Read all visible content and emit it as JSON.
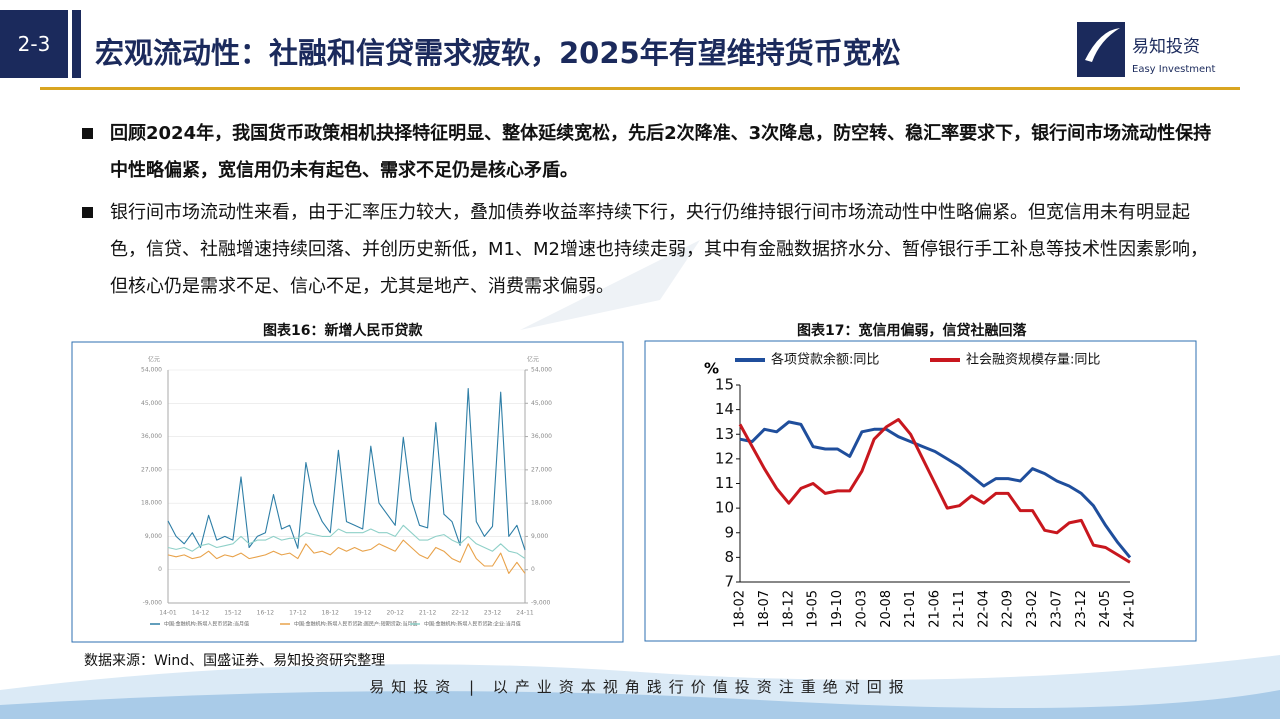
{
  "header": {
    "section": "2-3",
    "title": "宏观流动性：社融和信贷需求疲软，2025年有望维持货币宽松",
    "logo_cn": "易知投资",
    "logo_en": "Easy Investment"
  },
  "bullets": [
    "回顾2024年，我国货币政策相机抉择特征明显、整体延续宽松，先后2次降准、3次降息，防空转、稳汇率要求下，银行间市场流动性保持中性略偏紧，宽信用仍未有起色、需求不足仍是核心矛盾。",
    "银行间市场流动性来看，由于汇率压力较大，叠加债券收益率持续下行，央行仍维持银行间市场流动性中性略偏紧。但宽信用未有明显起色，信贷、社融增速持续回落、并创历史新低，M1、M2增速也持续走弱，其中有金融数据挤水分、暂停银行手工补息等技术性因素影响，但核心仍是需求不足、信心不足，尤其是地产、消费需求偏弱。"
  ],
  "source": "数据来源：Wind、国盛证券、易知投资研究整理",
  "footer": "易知投资 | 以产业资本视角践行价值投资注重绝对回报",
  "chart_data": [
    {
      "type": "line",
      "title": "图表16：新增人民币贷款",
      "unit": "亿元",
      "categories": [
        "14-01",
        null,
        null,
        null,
        "14-12",
        null,
        null,
        null,
        "15-12",
        null,
        null,
        null,
        "16-12",
        null,
        null,
        null,
        "17-12",
        null,
        null,
        null,
        "18-12",
        null,
        null,
        null,
        "19-12",
        null,
        null,
        null,
        "20-12",
        null,
        null,
        null,
        "21-12",
        null,
        null,
        null,
        "22-12",
        null,
        null,
        null,
        "23-12",
        null,
        null,
        null,
        "24-11"
      ],
      "ylim": [
        -9000,
        54000
      ],
      "yticks": [
        {
          "value": -9000,
          "label": "-9,000"
        },
        0,
        {
          "value": 9000,
          "label": "9,000"
        },
        {
          "value": 18000,
          "label": "18,000"
        },
        {
          "value": 27000,
          "label": "27,000"
        },
        {
          "value": 36000,
          "label": "36,000"
        },
        {
          "value": 45000,
          "label": "45,000"
        },
        {
          "value": 54000,
          "label": "54,000"
        }
      ],
      "y2lim": [
        -9000,
        54000
      ],
      "y2ticks": [
        {
          "value": -9000,
          "label": "-9,000"
        },
        0,
        {
          "value": 9000,
          "label": "9,000"
        },
        {
          "value": 18000,
          "label": "18,000"
        },
        {
          "value": 27000,
          "label": "27,000"
        },
        {
          "value": 36000,
          "label": "36,000"
        },
        {
          "value": 45000,
          "label": "45,000"
        },
        {
          "value": 54000,
          "label": "54,000"
        }
      ],
      "grid": true,
      "series": [
        {
          "name": "中国:金融机构:新增人民币贷款:当月值",
          "color": "#2e7ea6",
          "values": [
            13200,
            9000,
            7000,
            10000,
            6000,
            14700,
            8000,
            9000,
            8000,
            25100,
            6000,
            9000,
            10000,
            20300,
            11000,
            12000,
            5800,
            29000,
            18000,
            13000,
            10000,
            32300,
            13000,
            12000,
            11000,
            33400,
            18000,
            15000,
            12000,
            35800,
            19000,
            12000,
            11300,
            39800,
            15000,
            13000,
            6600,
            49000,
            13000,
            9000,
            11700,
            48000,
            9000,
            12000,
            5300
          ]
        },
        {
          "name": "中国:金融机构:新增人民币贷款:居民户:短期贷款:当月值",
          "color": "#e8a24a",
          "values": [
            4000,
            3500,
            4000,
            3000,
            3500,
            5000,
            3000,
            4000,
            3500,
            4500,
            3000,
            3500,
            4000,
            5000,
            4000,
            4500,
            3000,
            7000,
            4500,
            5000,
            4000,
            6000,
            5000,
            6000,
            5000,
            5500,
            7000,
            6000,
            5000,
            8000,
            6000,
            4000,
            3000,
            6000,
            5000,
            3000,
            2000,
            7000,
            3000,
            1000,
            1000,
            4500,
            -1000,
            2000,
            -1000
          ]
        },
        {
          "name": "中国:金融机构:新增人民币贷款:企业:当月值",
          "color": "#8fd0c8",
          "values": [
            6000,
            5500,
            6000,
            5000,
            6500,
            7000,
            6000,
            6500,
            7000,
            9000,
            7000,
            8000,
            8000,
            9000,
            8000,
            8500,
            8500,
            10000,
            9500,
            9000,
            9000,
            11000,
            10000,
            10000,
            10000,
            11000,
            10000,
            10000,
            9000,
            12000,
            10000,
            8000,
            8000,
            9000,
            9500,
            8000,
            7000,
            9000,
            7000,
            6000,
            5000,
            7000,
            5000,
            4500,
            3000
          ]
        }
      ]
    },
    {
      "type": "line",
      "title": "图表17：宽信用偏弱，信贷社融回落",
      "ylabel": "%",
      "categories": [
        "18-02",
        null,
        "18-07",
        null,
        "18-12",
        null,
        "19-05",
        null,
        "19-10",
        null,
        "20-03",
        null,
        "20-08",
        null,
        "21-01",
        null,
        "21-06",
        null,
        "21-11",
        null,
        "22-04",
        null,
        "22-09",
        null,
        "23-02",
        null,
        "23-07",
        null,
        "23-12",
        null,
        "24-05",
        null,
        "24-10"
      ],
      "ylim": [
        7,
        15
      ],
      "yticks": [
        7,
        8,
        9,
        10,
        11,
        12,
        13,
        14,
        15
      ],
      "grid": false,
      "series": [
        {
          "name": "各项贷款余额:同比",
          "color": "#1f4e9c",
          "values": [
            12.8,
            12.7,
            13.2,
            13.1,
            13.5,
            13.4,
            12.5,
            12.4,
            12.4,
            12.1,
            13.1,
            13.2,
            13.2,
            12.9,
            12.7,
            12.5,
            12.3,
            12.0,
            11.7,
            11.3,
            10.9,
            11.2,
            11.2,
            11.1,
            11.6,
            11.4,
            11.1,
            10.9,
            10.6,
            10.1,
            9.3,
            8.6,
            8.0
          ]
        },
        {
          "name": "社会融资规模存量:同比",
          "color": "#c8171e",
          "values": [
            13.4,
            12.5,
            11.6,
            10.8,
            10.2,
            10.8,
            11.0,
            10.6,
            10.7,
            10.7,
            11.5,
            12.8,
            13.3,
            13.6,
            13.0,
            12.0,
            11.0,
            10.0,
            10.1,
            10.5,
            10.2,
            10.6,
            10.6,
            9.9,
            9.9,
            9.1,
            9.0,
            9.4,
            9.5,
            8.5,
            8.4,
            8.1,
            7.8
          ]
        }
      ]
    }
  ]
}
